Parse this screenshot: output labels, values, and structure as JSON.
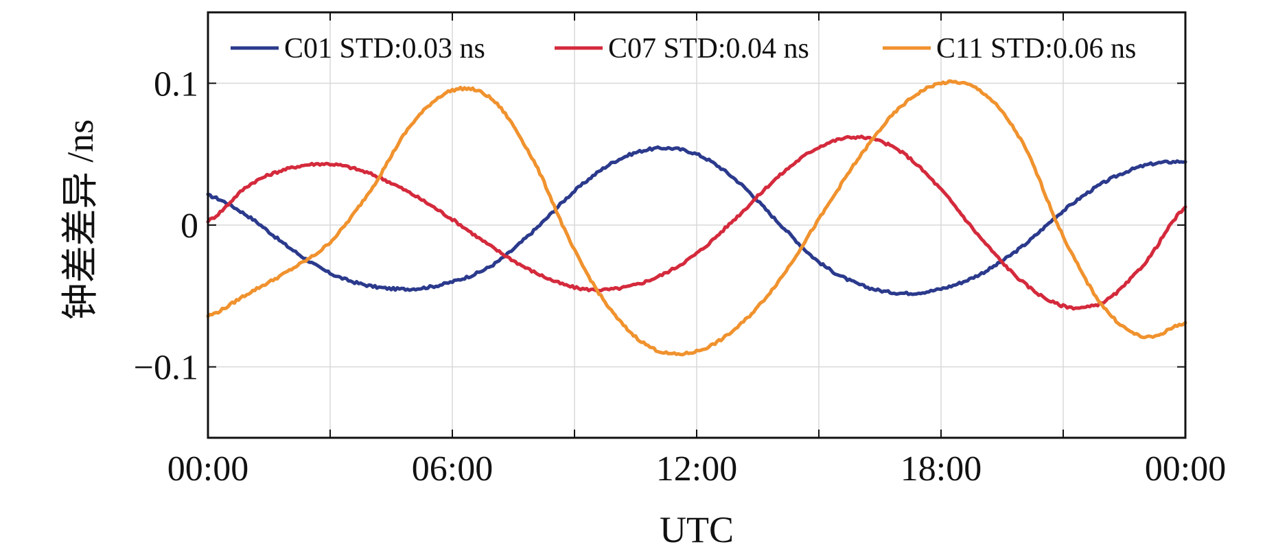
{
  "chart_data": {
    "type": "line",
    "xlabel": "UTC",
    "ylabel": "钟差差异 /ns",
    "x_ticks": [
      "00:00",
      "06:00",
      "12:00",
      "18:00",
      "00:00"
    ],
    "y_ticks": [
      {
        "value": 0.1,
        "label": "0.1"
      },
      {
        "value": 0,
        "label": "0"
      },
      {
        "value": -0.1,
        "label": "−0.1"
      }
    ],
    "xlim": [
      0,
      24
    ],
    "ylim": [
      -0.15,
      0.15
    ],
    "grid": true,
    "legend_position": "top",
    "x": [
      0,
      1,
      2,
      3,
      4,
      5,
      6,
      7,
      8,
      9,
      10,
      11,
      12,
      13,
      14,
      15,
      16,
      17,
      18,
      19,
      20,
      21,
      22,
      23,
      24
    ],
    "series": [
      {
        "name": "C01 STD:0.03 ns",
        "color": "#2b3a8c",
        "values": [
          0.021,
          0.006,
          -0.016,
          -0.034,
          -0.043,
          -0.045,
          -0.04,
          -0.028,
          -0.004,
          0.024,
          0.045,
          0.054,
          0.05,
          0.031,
          0.002,
          -0.026,
          -0.042,
          -0.048,
          -0.045,
          -0.034,
          -0.015,
          0.01,
          0.03,
          0.042,
          0.045
        ]
      },
      {
        "name": "C07 STD:0.04 ns",
        "color": "#d42a3c",
        "values": [
          0.003,
          0.028,
          0.04,
          0.043,
          0.036,
          0.022,
          0.004,
          -0.016,
          -0.033,
          -0.044,
          -0.045,
          -0.037,
          -0.02,
          0.006,
          0.034,
          0.055,
          0.062,
          0.052,
          0.025,
          -0.01,
          -0.04,
          -0.057,
          -0.054,
          -0.027,
          0.012
        ]
      },
      {
        "name": "C11 STD:0.06 ns",
        "color": "#f0922e",
        "values": [
          -0.064,
          -0.048,
          -0.032,
          -0.012,
          0.025,
          0.071,
          0.095,
          0.088,
          0.045,
          -0.018,
          -0.064,
          -0.088,
          -0.089,
          -0.072,
          -0.04,
          0.004,
          0.048,
          0.083,
          0.1,
          0.094,
          0.058,
          -0.008,
          -0.058,
          -0.079,
          -0.069
        ]
      }
    ]
  }
}
